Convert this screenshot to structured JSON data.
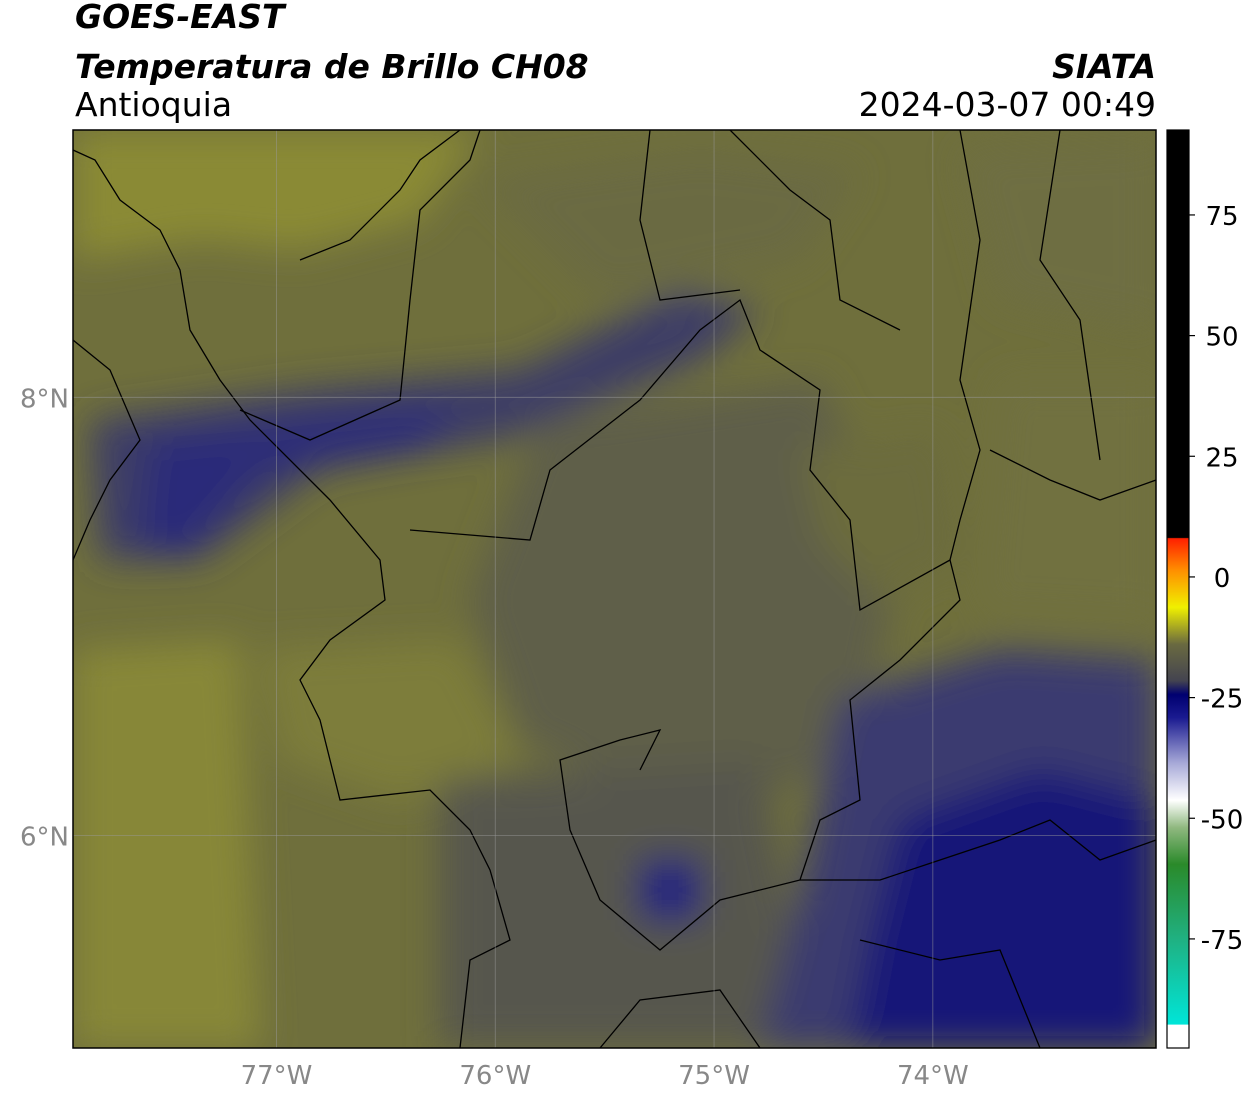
{
  "header": {
    "title": "GOES-EAST",
    "subtitle": "Temperatura de Brillo CH08",
    "region": "Antioquia",
    "source": "SIATA",
    "datetime": "2024-03-07 00:49"
  },
  "map": {
    "lon_range": [
      -77.93,
      -72.98
    ],
    "lat_range": [
      5.03,
      9.22
    ],
    "lon_ticks": [
      {
        "value": -77,
        "label": "77°W"
      },
      {
        "value": -76,
        "label": "76°W"
      },
      {
        "value": -75,
        "label": "75°W"
      },
      {
        "value": -74,
        "label": "74°W"
      }
    ],
    "lat_ticks": [
      {
        "value": 8,
        "label": "8°N"
      },
      {
        "value": 6,
        "label": "6°N"
      }
    ]
  },
  "colorbar": {
    "range": [
      -97.6,
      92.6
    ],
    "ticks": [
      75,
      50,
      25,
      0,
      -25,
      -50,
      -75
    ]
  }
}
